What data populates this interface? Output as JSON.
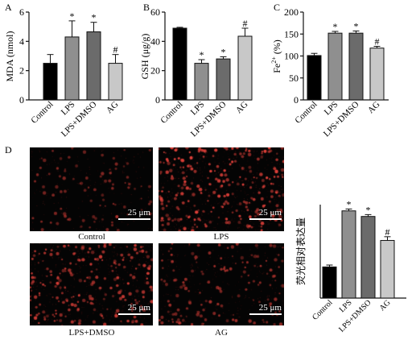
{
  "panels": {
    "A": {
      "letter": "A",
      "ylabel": "MDA (nmol)"
    },
    "B": {
      "letter": "B",
      "ylabel": "GSH (μg/g)"
    },
    "C": {
      "letter": "C",
      "ylabel_main": "Fe",
      "ylabel_sup": "2+",
      "ylabel_tail": " (%)"
    },
    "D": {
      "letter": "D",
      "ylabel": "荧光相对表达量"
    }
  },
  "micrographs": {
    "scale_label": "25 μm",
    "captions": [
      "Control",
      "LPS",
      "LPS+DMSO",
      "AG"
    ],
    "density": [
      0.35,
      1.0,
      0.85,
      0.55
    ]
  },
  "colors": {
    "control": "#000000",
    "lps": "#8f8f8f",
    "lps_dmso": "#6b6b6b",
    "ag": "#c8c8c8",
    "fluor": "#e2413a"
  },
  "chart_data": [
    {
      "id": "A",
      "type": "bar",
      "categories": [
        "Control",
        "LPS",
        "LPS+DMSO",
        "AG"
      ],
      "values": [
        2.5,
        4.3,
        4.65,
        2.5
      ],
      "errors": [
        0.6,
        1.1,
        0.65,
        0.6
      ],
      "markers": [
        "",
        "*",
        "*",
        "#"
      ],
      "ylabel": "MDA (nmol)",
      "ylim": [
        0,
        6
      ],
      "yticks": [
        "0",
        "2",
        "4",
        "6"
      ]
    },
    {
      "id": "B",
      "type": "bar",
      "categories": [
        "Control",
        "LPS",
        "LPS+DMSO",
        "AG"
      ],
      "values": [
        49,
        25,
        28,
        43.5
      ],
      "errors": [
        0.6,
        2.5,
        1.5,
        5.5
      ],
      "markers": [
        "",
        "*",
        "*",
        "#"
      ],
      "ylabel": "GSH (μg/g)",
      "ylim": [
        0,
        60
      ],
      "yticks": [
        "0",
        "20",
        "40",
        "60"
      ]
    },
    {
      "id": "C",
      "type": "bar",
      "categories": [
        "Control",
        "LPS",
        "LPS+DMSO",
        "AG"
      ],
      "values": [
        101,
        152,
        152,
        118
      ],
      "errors": [
        5,
        4,
        5,
        4
      ],
      "markers": [
        "",
        "*",
        "*",
        "#"
      ],
      "ylabel": "Fe2+ (%)",
      "ylim": [
        0,
        200
      ],
      "yticks": [
        "0",
        "50",
        "100",
        "150",
        "200"
      ]
    },
    {
      "id": "D",
      "type": "bar",
      "categories": [
        "Control",
        "LPS",
        "LPS+DMSO",
        "AG"
      ],
      "values": [
        1.0,
        2.8,
        2.62,
        1.85
      ],
      "errors": [
        0.06,
        0.06,
        0.06,
        0.12
      ],
      "markers": [
        "",
        "*",
        "*",
        "#"
      ],
      "ylabel": "荧光相对表达量",
      "ylim": [
        0,
        3
      ],
      "yticks": []
    }
  ]
}
